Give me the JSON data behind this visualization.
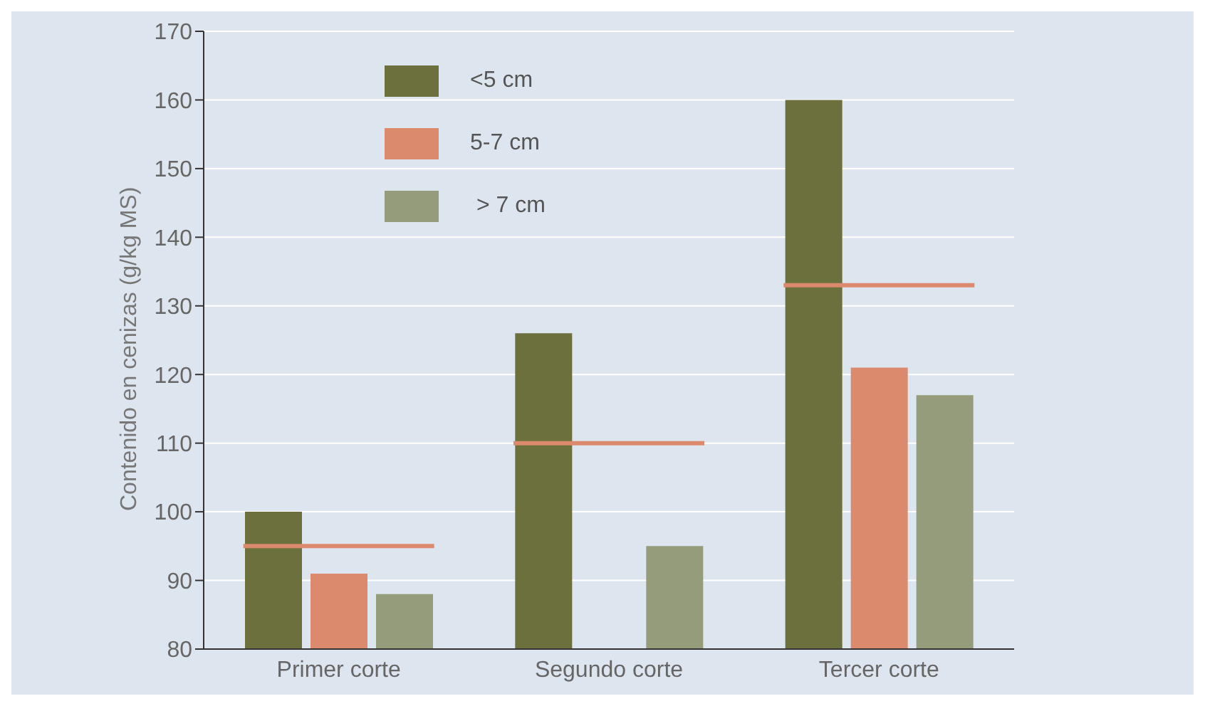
{
  "chart_data": {
    "type": "bar",
    "ylabel": "Contenido en cenizas (g/kg MS)",
    "categories": [
      "Primer corte",
      "Segundo corte",
      "Tercer corte"
    ],
    "series": [
      {
        "name": "<5 cm",
        "color": "#6b703c",
        "values": [
          100,
          126,
          160
        ]
      },
      {
        "name": "5-7 cm",
        "color": "#dc8a6e",
        "values": [
          91,
          null,
          121
        ]
      },
      {
        "name": " > 7 cm",
        "color": "#949c7c",
        "values": [
          88,
          95,
          117
        ]
      }
    ],
    "ref_lines": [
      {
        "axis": "y",
        "value": 95,
        "color": "#dc8a6e"
      },
      {
        "axis": "y",
        "value": 110,
        "color": "#dc8a6e"
      },
      {
        "axis": "y",
        "value": 133,
        "color": "#dc8a6e"
      }
    ],
    "ylim": [
      80,
      170
    ],
    "yticks": [
      80,
      90,
      100,
      110,
      120,
      130,
      140,
      150,
      160,
      170
    ],
    "grid": "y",
    "legend": "top left"
  }
}
